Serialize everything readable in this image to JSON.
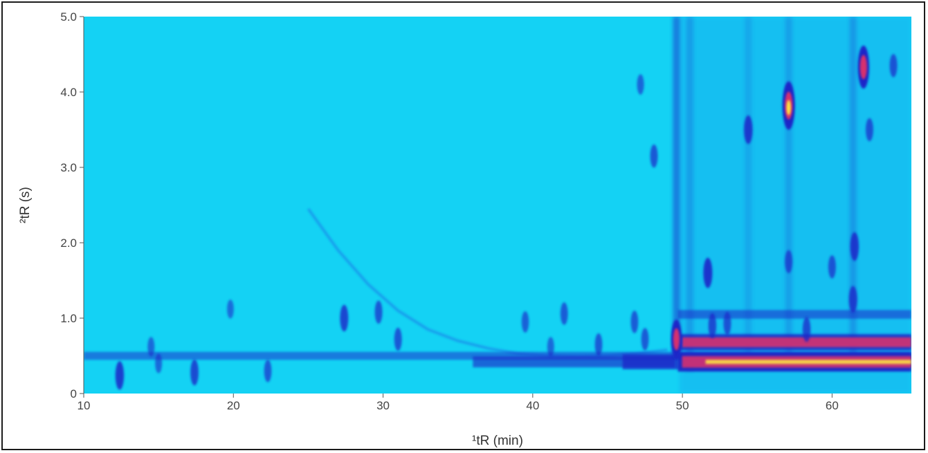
{
  "chart_data": {
    "type": "heatmap",
    "title": "",
    "xlabel": "¹tR (min)",
    "ylabel": "²tR (s)",
    "xlim": [
      10,
      65.3
    ],
    "ylim": [
      0,
      5.0
    ],
    "x_ticks": [
      10,
      20,
      30,
      40,
      50,
      60
    ],
    "y_ticks": [
      0,
      1.0,
      2.0,
      3.0,
      4.0,
      5.0
    ],
    "y_tick_labels": [
      "0",
      "1.0",
      "2.0",
      "3.0",
      "4.0",
      "5.0"
    ],
    "background_color": "#14d2f4",
    "colormap": [
      "#14d2f4",
      "#1e6ee6",
      "#1a28c8",
      "#7a2a9a",
      "#e0306a",
      "#ffee40"
    ],
    "grid": false,
    "bands": [
      {
        "x_start": 10,
        "x_end": 65.3,
        "y": 0.5,
        "intensity": 0.25
      },
      {
        "x_start": 36,
        "x_end": 49.5,
        "y": 0.42,
        "intensity": 0.45
      },
      {
        "x_start": 46,
        "x_end": 49.8,
        "y": 0.42,
        "intensity": 0.7
      },
      {
        "x_start": 49.7,
        "x_end": 65.3,
        "y": 0.42,
        "intensity": 1.0
      },
      {
        "x_start": 49.7,
        "x_end": 65.3,
        "y": 0.68,
        "intensity": 0.8
      },
      {
        "x_start": 49.7,
        "x_end": 65.3,
        "y": 1.05,
        "intensity": 0.3
      }
    ],
    "peaks": [
      {
        "x": 57.1,
        "y": 3.82,
        "intensity": 1.0
      },
      {
        "x": 62.1,
        "y": 4.33,
        "intensity": 0.85
      },
      {
        "x": 49.6,
        "y": 0.72,
        "intensity": 0.75
      },
      {
        "x": 54.4,
        "y": 3.5,
        "intensity": 0.45
      },
      {
        "x": 51.7,
        "y": 1.6,
        "intensity": 0.5
      },
      {
        "x": 61.5,
        "y": 1.95,
        "intensity": 0.45
      },
      {
        "x": 61.4,
        "y": 1.25,
        "intensity": 0.4
      },
      {
        "x": 58.3,
        "y": 0.85,
        "intensity": 0.35
      },
      {
        "x": 57.1,
        "y": 1.75,
        "intensity": 0.3
      },
      {
        "x": 60.0,
        "y": 1.68,
        "intensity": 0.3
      },
      {
        "x": 62.5,
        "y": 3.5,
        "intensity": 0.3
      },
      {
        "x": 64.1,
        "y": 4.35,
        "intensity": 0.3
      },
      {
        "x": 48.1,
        "y": 3.15,
        "intensity": 0.3
      },
      {
        "x": 47.2,
        "y": 4.1,
        "intensity": 0.22
      },
      {
        "x": 27.4,
        "y": 1.0,
        "intensity": 0.4
      },
      {
        "x": 29.7,
        "y": 1.08,
        "intensity": 0.3
      },
      {
        "x": 12.4,
        "y": 0.24,
        "intensity": 0.45
      },
      {
        "x": 17.4,
        "y": 0.28,
        "intensity": 0.38
      },
      {
        "x": 22.3,
        "y": 0.3,
        "intensity": 0.28
      },
      {
        "x": 31.0,
        "y": 0.72,
        "intensity": 0.3
      },
      {
        "x": 39.5,
        "y": 0.95,
        "intensity": 0.25
      },
      {
        "x": 42.1,
        "y": 1.06,
        "intensity": 0.28
      },
      {
        "x": 44.4,
        "y": 0.65,
        "intensity": 0.28
      },
      {
        "x": 46.8,
        "y": 0.95,
        "intensity": 0.28
      },
      {
        "x": 47.5,
        "y": 0.72,
        "intensity": 0.28
      },
      {
        "x": 52.0,
        "y": 0.9,
        "intensity": 0.35
      },
      {
        "x": 53.0,
        "y": 0.93,
        "intensity": 0.3
      },
      {
        "x": 14.5,
        "y": 0.62,
        "intensity": 0.2
      },
      {
        "x": 15.0,
        "y": 0.4,
        "intensity": 0.2
      },
      {
        "x": 19.8,
        "y": 1.12,
        "intensity": 0.18
      },
      {
        "x": 41.2,
        "y": 0.62,
        "intensity": 0.2
      }
    ],
    "streaks": [
      {
        "x": 49.6,
        "y_start": 0.5,
        "y_end": 5.0,
        "intensity": 0.5
      },
      {
        "x": 50.5,
        "y_start": 0.3,
        "y_end": 5.0,
        "intensity": 0.22
      },
      {
        "x": 61.4,
        "y_start": 0.5,
        "y_end": 5.0,
        "intensity": 0.25
      },
      {
        "x": 57.1,
        "y_start": 0.4,
        "y_end": 5.0,
        "intensity": 0.2
      },
      {
        "x": 54.4,
        "y_start": 0.4,
        "y_end": 5.0,
        "intensity": 0.15
      }
    ],
    "bleed_arc": [
      {
        "x": 25.0,
        "y": 2.45
      },
      {
        "x": 27.0,
        "y": 1.9
      },
      {
        "x": 29.0,
        "y": 1.45
      },
      {
        "x": 31.0,
        "y": 1.1
      },
      {
        "x": 33.0,
        "y": 0.85
      },
      {
        "x": 35.0,
        "y": 0.7
      },
      {
        "x": 37.0,
        "y": 0.6
      },
      {
        "x": 39.0,
        "y": 0.53
      },
      {
        "x": 41.0,
        "y": 0.5
      },
      {
        "x": 43.0,
        "y": 0.49
      },
      {
        "x": 45.0,
        "y": 0.5
      },
      {
        "x": 47.0,
        "y": 0.53
      },
      {
        "x": 49.0,
        "y": 0.58
      }
    ]
  }
}
